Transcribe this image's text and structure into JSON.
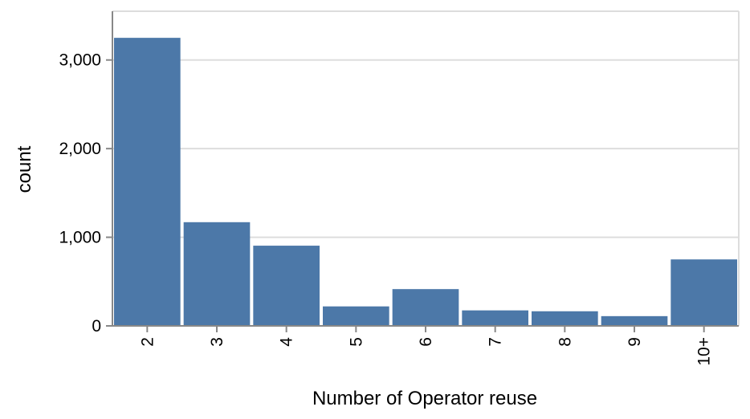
{
  "chart_data": {
    "type": "bar",
    "categories": [
      "2",
      "3",
      "4",
      "5",
      "6",
      "7",
      "8",
      "9",
      "10+"
    ],
    "values": [
      3250,
      1170,
      905,
      220,
      415,
      175,
      165,
      110,
      750
    ],
    "xlabel": "Number of Operator reuse",
    "ylabel": "count",
    "ylim": [
      0,
      3550
    ],
    "yticks": [
      0,
      1000,
      2000,
      3000
    ],
    "ytick_labels": [
      "0",
      "1,000",
      "2,000",
      "3,000"
    ],
    "grid": true,
    "legend": "none",
    "bar_color": "#4c78a8"
  }
}
